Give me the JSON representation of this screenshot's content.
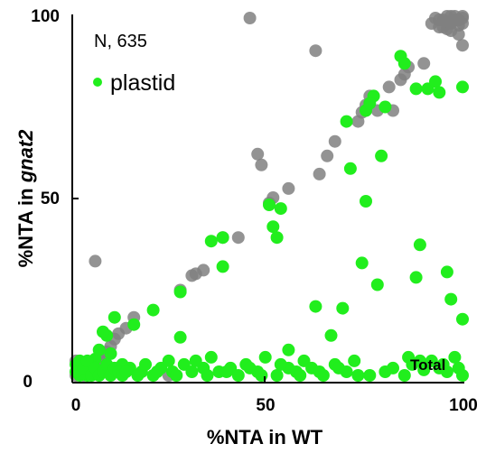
{
  "chart_data": {
    "type": "scatter",
    "xlabel": "%NTA in WT",
    "ylabel_prefix": "%NTA in ",
    "ylabel_gene": "gnat2",
    "xlim": [
      0,
      100
    ],
    "ylim": [
      0,
      100
    ],
    "xticks": [
      {
        "value": 0,
        "label": "0"
      },
      {
        "value": 50,
        "label": "50"
      },
      {
        "value": 100,
        "label": "100"
      }
    ],
    "yticks": [
      {
        "value": 0,
        "label": "0"
      },
      {
        "value": 50,
        "label": "50"
      },
      {
        "value": 100,
        "label": "100"
      }
    ],
    "annotations": {
      "sample": "N, 635",
      "legend_label": "plastid",
      "corner": "Total"
    },
    "legend_position": "top-left",
    "grid": false,
    "series": [
      {
        "color": "#808080",
        "points": [
          [
            45,
            99.5
          ],
          [
            5,
            32.5
          ],
          [
            62,
            90.5
          ],
          [
            90,
            87
          ],
          [
            92,
            98
          ],
          [
            93,
            99.5
          ],
          [
            94,
            97
          ],
          [
            95,
            99
          ],
          [
            96,
            98.5
          ],
          [
            97,
            100
          ],
          [
            98,
            99
          ],
          [
            99,
            97.5
          ],
          [
            100,
            100
          ],
          [
            99,
            95
          ],
          [
            96,
            96.5
          ],
          [
            98,
            100
          ],
          [
            100,
            98
          ],
          [
            95,
            97
          ],
          [
            94,
            99
          ],
          [
            97,
            96
          ],
          [
            99,
            99
          ],
          [
            100,
            99.5
          ],
          [
            97,
            98
          ],
          [
            96,
            100
          ],
          [
            100,
            92
          ],
          [
            85,
            84
          ],
          [
            86,
            86
          ],
          [
            84,
            82.5
          ],
          [
            81,
            80.5
          ],
          [
            76,
            78
          ],
          [
            75,
            75.5
          ],
          [
            74,
            73.5
          ],
          [
            78,
            74
          ],
          [
            82,
            74
          ],
          [
            73,
            71
          ],
          [
            67,
            65.5
          ],
          [
            65,
            61.5
          ],
          [
            63,
            56.5
          ],
          [
            55,
            52.5
          ],
          [
            51,
            50
          ],
          [
            48,
            59
          ],
          [
            47,
            62
          ],
          [
            50,
            48.5
          ],
          [
            42,
            39
          ],
          [
            38,
            39
          ],
          [
            33,
            30
          ],
          [
            31,
            29
          ],
          [
            30,
            28.5
          ],
          [
            27,
            24.5
          ],
          [
            24,
            1
          ],
          [
            15,
            17
          ],
          [
            13,
            14
          ],
          [
            11,
            12.5
          ],
          [
            10,
            11
          ],
          [
            9,
            9
          ],
          [
            8,
            7.5
          ],
          [
            7,
            6.5
          ],
          [
            6,
            5.5
          ],
          [
            5,
            4.5
          ],
          [
            4,
            4
          ],
          [
            3,
            3
          ],
          [
            2,
            2.5
          ],
          [
            1,
            2
          ],
          [
            0,
            1
          ],
          [
            1,
            3
          ],
          [
            2,
            1
          ],
          [
            3,
            2
          ],
          [
            1,
            1.5
          ],
          [
            0,
            5
          ],
          [
            4,
            2
          ],
          [
            2,
            4
          ]
        ]
      },
      {
        "color": "#21ee1d",
        "points": [
          [
            84,
            89
          ],
          [
            85,
            87
          ],
          [
            88,
            80
          ],
          [
            91,
            80
          ],
          [
            93,
            82
          ],
          [
            94,
            79
          ],
          [
            100,
            80.5
          ],
          [
            77,
            78
          ],
          [
            75,
            74
          ],
          [
            76,
            76
          ],
          [
            70,
            71
          ],
          [
            71,
            58
          ],
          [
            75,
            49
          ],
          [
            79,
            61.5
          ],
          [
            80,
            75
          ],
          [
            89,
            37
          ],
          [
            88,
            28
          ],
          [
            96,
            29.5
          ],
          [
            97,
            22
          ],
          [
            98,
            6
          ],
          [
            100,
            16.5
          ],
          [
            95,
            4
          ],
          [
            92,
            5
          ],
          [
            94,
            3
          ],
          [
            99,
            3
          ],
          [
            100,
            1
          ],
          [
            96,
            2
          ],
          [
            90,
            2.5
          ],
          [
            89,
            5
          ],
          [
            86,
            6
          ],
          [
            80,
            2
          ],
          [
            78,
            26
          ],
          [
            74,
            32
          ],
          [
            69,
            19.5
          ],
          [
            66,
            12
          ],
          [
            62,
            20
          ],
          [
            55,
            8
          ],
          [
            50,
            48
          ],
          [
            51,
            42
          ],
          [
            52,
            39
          ],
          [
            53,
            47
          ],
          [
            38,
            31
          ],
          [
            38,
            39
          ],
          [
            35,
            38
          ],
          [
            27,
            24
          ],
          [
            27,
            11.5
          ],
          [
            20,
            19
          ],
          [
            15,
            15
          ],
          [
            10,
            17
          ],
          [
            8,
            12
          ],
          [
            7,
            13
          ],
          [
            5,
            5.5
          ],
          [
            4,
            3
          ],
          [
            3,
            1
          ],
          [
            2,
            2
          ],
          [
            1,
            1
          ],
          [
            6,
            8
          ],
          [
            9,
            7
          ],
          [
            12,
            4
          ],
          [
            14,
            3
          ],
          [
            17,
            2
          ],
          [
            20,
            1
          ],
          [
            22,
            3
          ],
          [
            25,
            2
          ],
          [
            28,
            4
          ],
          [
            30,
            2
          ],
          [
            33,
            3
          ],
          [
            35,
            6
          ],
          [
            37,
            2
          ],
          [
            40,
            3
          ],
          [
            42,
            1
          ],
          [
            44,
            4
          ],
          [
            47,
            2
          ],
          [
            49,
            6
          ],
          [
            52,
            1
          ],
          [
            55,
            3
          ],
          [
            57,
            2
          ],
          [
            59,
            5
          ],
          [
            61,
            3
          ],
          [
            64,
            1
          ],
          [
            67,
            4
          ],
          [
            70,
            2
          ],
          [
            72,
            5
          ],
          [
            76,
            1
          ],
          [
            82,
            3
          ],
          [
            85,
            1
          ],
          [
            87,
            4
          ],
          [
            0,
            2
          ],
          [
            0,
            4
          ],
          [
            1,
            5
          ],
          [
            2,
            3
          ],
          [
            3,
            5
          ],
          [
            4,
            1
          ],
          [
            5,
            3
          ],
          [
            6,
            1
          ],
          [
            7,
            2
          ],
          [
            8,
            4
          ],
          [
            9,
            1
          ],
          [
            10,
            3
          ],
          [
            11,
            2
          ],
          [
            12,
            1
          ],
          [
            13,
            2
          ],
          [
            16,
            1
          ],
          [
            18,
            4
          ],
          [
            21,
            2
          ],
          [
            24,
            5
          ],
          [
            26,
            1
          ],
          [
            31,
            5
          ],
          [
            34,
            1
          ],
          [
            39,
            2
          ],
          [
            45,
            3
          ],
          [
            48,
            1
          ],
          [
            53,
            4
          ],
          [
            58,
            1
          ],
          [
            63,
            2
          ],
          [
            68,
            3
          ],
          [
            73,
            1
          ]
        ]
      }
    ]
  }
}
